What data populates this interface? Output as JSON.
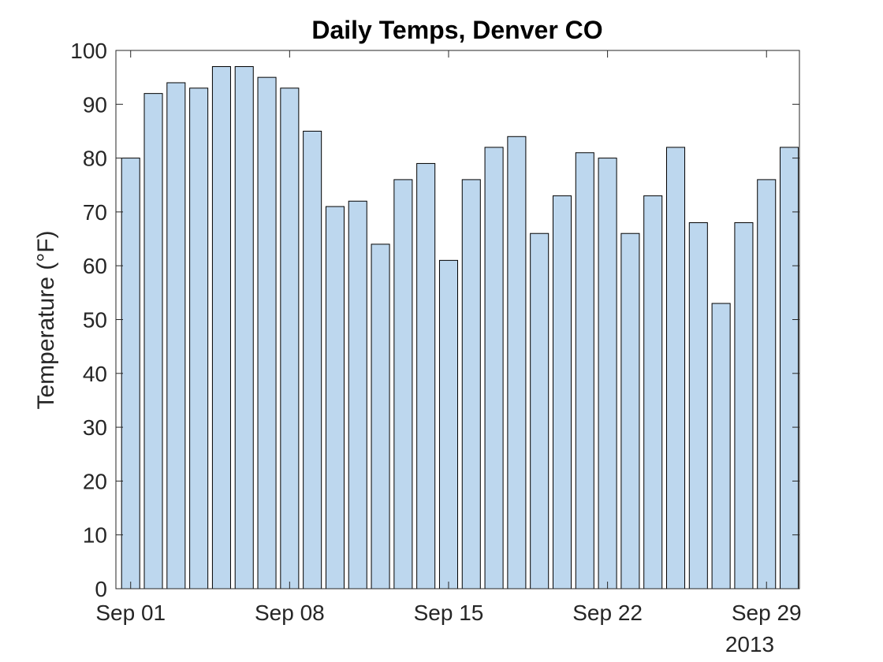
{
  "chart_data": {
    "type": "bar",
    "title": "Daily Temps, Denver CO",
    "xlabel": "",
    "ylabel": "Temperature (°F)",
    "x": [
      "2013-09-01",
      "2013-09-02",
      "2013-09-03",
      "2013-09-04",
      "2013-09-05",
      "2013-09-06",
      "2013-09-07",
      "2013-09-08",
      "2013-09-09",
      "2013-09-10",
      "2013-09-11",
      "2013-09-12",
      "2013-09-13",
      "2013-09-14",
      "2013-09-15",
      "2013-09-16",
      "2013-09-17",
      "2013-09-18",
      "2013-09-19",
      "2013-09-20",
      "2013-09-21",
      "2013-09-22",
      "2013-09-23",
      "2013-09-24",
      "2013-09-25",
      "2013-09-26",
      "2013-09-27",
      "2013-09-28",
      "2013-09-29",
      "2013-09-30"
    ],
    "values": [
      80,
      92,
      94,
      93,
      97,
      97,
      95,
      93,
      85,
      71,
      72,
      64,
      76,
      79,
      61,
      76,
      82,
      84,
      66,
      73,
      81,
      80,
      66,
      73,
      82,
      68,
      53,
      68,
      76,
      82
    ],
    "ylim": [
      0,
      100
    ],
    "yticks": [
      "0",
      "10",
      "20",
      "30",
      "40",
      "50",
      "60",
      "70",
      "80",
      "90",
      "100"
    ],
    "xticks": [
      {
        "date": "2013-09-01",
        "label": "Sep 01"
      },
      {
        "date": "2013-09-08",
        "label": "Sep 08"
      },
      {
        "date": "2013-09-15",
        "label": "Sep 15"
      },
      {
        "date": "2013-09-22",
        "label": "Sep 22"
      },
      {
        "date": "2013-09-29",
        "label": "Sep 29"
      }
    ],
    "x_secondary_label": "2013",
    "bar_color": "#bdd7ee",
    "bar_edge_color": "#000000",
    "grid": false,
    "legend": "none"
  }
}
